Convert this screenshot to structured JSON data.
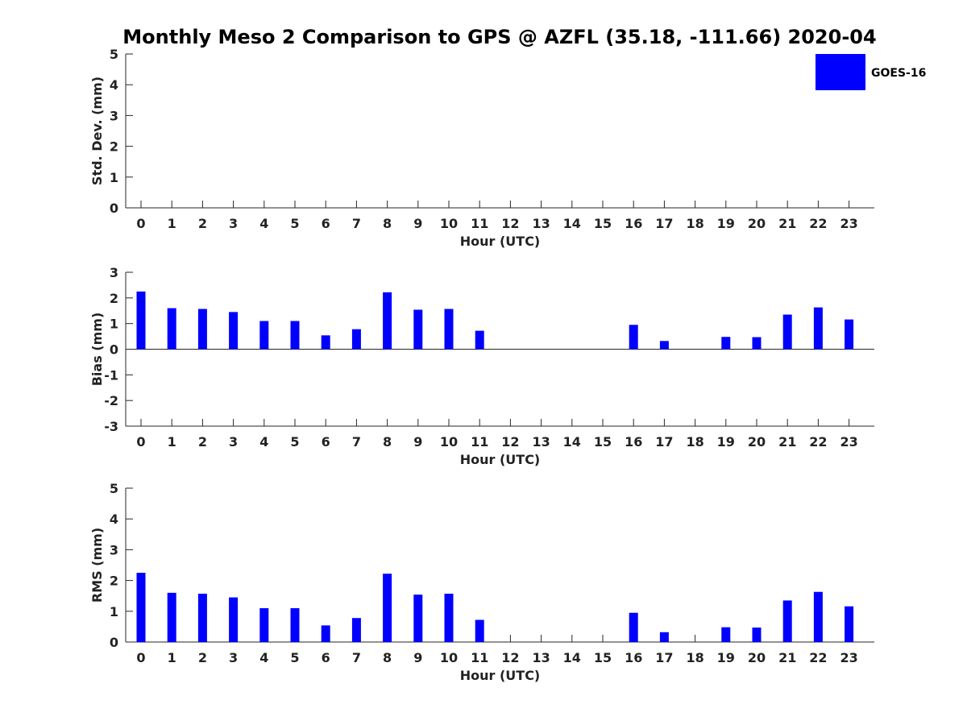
{
  "title": "Monthly Meso 2 Comparison to GPS @ AZFL (35.18, -111.66) 2020-04",
  "legend": {
    "label": "GOES-16",
    "color": "#0000ff",
    "placement": "top-right"
  },
  "chart_data": [
    {
      "type": "bar",
      "ylabel": "Std. Dev. (mm)",
      "xlabel": "Hour (UTC)",
      "ylim": [
        0,
        5
      ],
      "yticks": [
        0,
        1,
        2,
        3,
        4,
        5
      ],
      "categories": [
        "0",
        "1",
        "2",
        "3",
        "4",
        "5",
        "6",
        "7",
        "8",
        "9",
        "10",
        "11",
        "12",
        "13",
        "14",
        "15",
        "16",
        "17",
        "18",
        "19",
        "20",
        "21",
        "22",
        "23"
      ],
      "series": [
        {
          "color": "#0000ff",
          "values": [
            0,
            0,
            0,
            0,
            0,
            0,
            0,
            0,
            0,
            0,
            0,
            0,
            0,
            0,
            0,
            0,
            0,
            0,
            0,
            0,
            0,
            0,
            0,
            0
          ]
        }
      ]
    },
    {
      "type": "bar",
      "ylabel": "Bias (mm)",
      "xlabel": "Hour (UTC)",
      "ylim": [
        -3,
        3
      ],
      "yticks": [
        -3,
        -2,
        -1,
        0,
        1,
        2,
        3
      ],
      "zero_line": true,
      "categories": [
        "0",
        "1",
        "2",
        "3",
        "4",
        "5",
        "6",
        "7",
        "8",
        "9",
        "10",
        "11",
        "12",
        "13",
        "14",
        "15",
        "16",
        "17",
        "18",
        "19",
        "20",
        "21",
        "22",
        "23"
      ],
      "series": [
        {
          "color": "#0000ff",
          "values": [
            2.25,
            1.6,
            1.57,
            1.45,
            1.1,
            1.1,
            0.54,
            0.78,
            2.22,
            1.54,
            1.57,
            0.72,
            null,
            null,
            null,
            null,
            0.95,
            0.32,
            0,
            0.48,
            0.47,
            1.35,
            1.63,
            1.16
          ]
        }
      ]
    },
    {
      "type": "bar",
      "ylabel": "RMS (mm)",
      "xlabel": "Hour (UTC)",
      "ylim": [
        0,
        5
      ],
      "yticks": [
        0,
        1,
        2,
        3,
        4,
        5
      ],
      "categories": [
        "0",
        "1",
        "2",
        "3",
        "4",
        "5",
        "6",
        "7",
        "8",
        "9",
        "10",
        "11",
        "12",
        "13",
        "14",
        "15",
        "16",
        "17",
        "18",
        "19",
        "20",
        "21",
        "22",
        "23"
      ],
      "series": [
        {
          "color": "#0000ff",
          "values": [
            2.25,
            1.6,
            1.57,
            1.45,
            1.1,
            1.1,
            0.54,
            0.78,
            2.22,
            1.54,
            1.57,
            0.72,
            null,
            null,
            null,
            null,
            0.95,
            0.32,
            0,
            0.48,
            0.47,
            1.35,
            1.63,
            1.16
          ]
        }
      ]
    }
  ]
}
